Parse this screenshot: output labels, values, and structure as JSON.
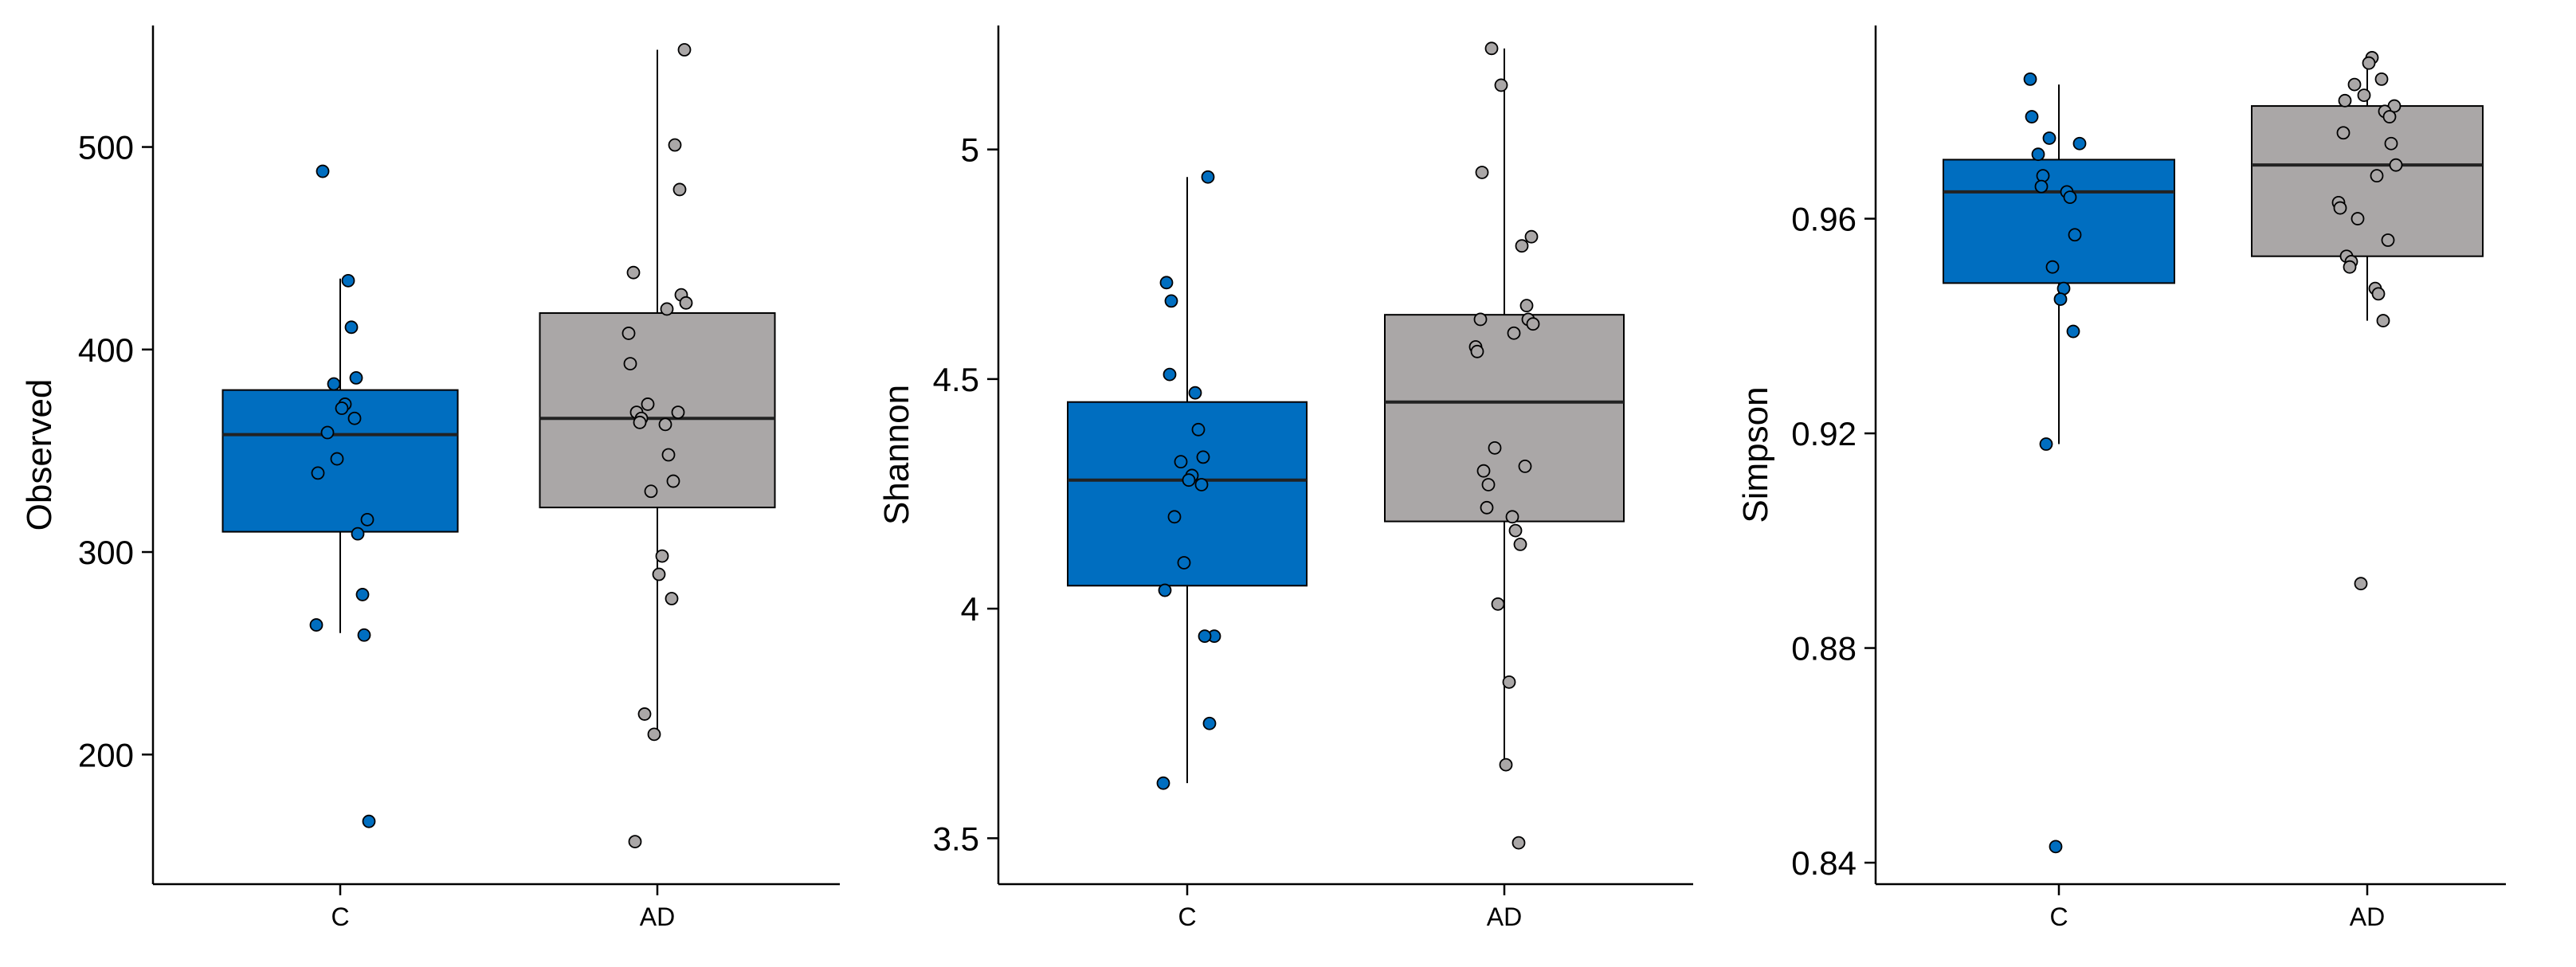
{
  "colors": {
    "C": "#006ec0",
    "AD": "#aaa7a7"
  },
  "chart_data": [
    {
      "type": "box",
      "ylabel": "Observed",
      "categories": [
        "C",
        "AD"
      ],
      "yticks": [
        200,
        300,
        400,
        500
      ],
      "ylim": [
        136,
        560
      ],
      "boxes": [
        {
          "category": "C",
          "whisker_low": 260,
          "q1": 310,
          "median": 358,
          "q3": 380,
          "whisker_high": 435
        },
        {
          "category": "AD",
          "whisker_low": 210,
          "q1": 322,
          "median": 366,
          "q3": 418,
          "whisker_high": 548
        }
      ],
      "points": [
        {
          "category": "C",
          "values": [
            488,
            434,
            411,
            386,
            383,
            373,
            371,
            366,
            359,
            346,
            339,
            316,
            309,
            279,
            264,
            259,
            167
          ]
        },
        {
          "category": "AD",
          "values": [
            548,
            501,
            479,
            438,
            427,
            423,
            420,
            408,
            393,
            373,
            369,
            369,
            366,
            364,
            363,
            348,
            335,
            330,
            298,
            289,
            277,
            220,
            210,
            157
          ]
        }
      ]
    },
    {
      "type": "box",
      "ylabel": "Shannon",
      "categories": [
        "C",
        "AD"
      ],
      "yticks": [
        3.5,
        4.0,
        4.5,
        5.0
      ],
      "ylim": [
        3.4,
        5.27
      ],
      "boxes": [
        {
          "category": "C",
          "whisker_low": 3.62,
          "q1": 4.05,
          "median": 4.28,
          "q3": 4.45,
          "whisker_high": 4.94
        },
        {
          "category": "AD",
          "whisker_low": 3.66,
          "q1": 4.19,
          "median": 4.45,
          "q3": 4.64,
          "whisker_high": 5.22
        }
      ],
      "points": [
        {
          "category": "C",
          "values": [
            4.94,
            4.71,
            4.67,
            4.51,
            4.47,
            4.39,
            4.33,
            4.32,
            4.29,
            4.28,
            4.27,
            4.2,
            4.1,
            4.04,
            3.94,
            3.94,
            3.75,
            3.62
          ]
        },
        {
          "category": "AD",
          "values": [
            5.22,
            5.14,
            4.95,
            4.81,
            4.79,
            4.66,
            4.63,
            4.63,
            4.62,
            4.6,
            4.57,
            4.56,
            4.35,
            4.31,
            4.3,
            4.27,
            4.22,
            4.2,
            4.17,
            4.14,
            4.01,
            3.84,
            3.66,
            3.49
          ]
        }
      ]
    },
    {
      "type": "box",
      "ylabel": "Simpson",
      "categories": [
        "C",
        "AD"
      ],
      "yticks": [
        0.84,
        0.88,
        0.92,
        0.96
      ],
      "ylim": [
        0.836,
        0.996
      ],
      "boxes": [
        {
          "category": "C",
          "whisker_low": 0.918,
          "q1": 0.948,
          "median": 0.965,
          "q3": 0.971,
          "whisker_high": 0.985
        },
        {
          "category": "AD",
          "whisker_low": 0.941,
          "q1": 0.953,
          "median": 0.97,
          "q3": 0.981,
          "whisker_high": 0.99
        }
      ],
      "points": [
        {
          "category": "C",
          "values": [
            0.986,
            0.979,
            0.975,
            0.974,
            0.972,
            0.968,
            0.966,
            0.965,
            0.964,
            0.957,
            0.951,
            0.947,
            0.945,
            0.939,
            0.918,
            0.843
          ]
        },
        {
          "category": "AD",
          "values": [
            0.99,
            0.989,
            0.986,
            0.985,
            0.983,
            0.982,
            0.981,
            0.98,
            0.979,
            0.976,
            0.974,
            0.97,
            0.968,
            0.963,
            0.962,
            0.96,
            0.956,
            0.953,
            0.952,
            0.951,
            0.947,
            0.946,
            0.941,
            0.892
          ]
        }
      ]
    }
  ]
}
